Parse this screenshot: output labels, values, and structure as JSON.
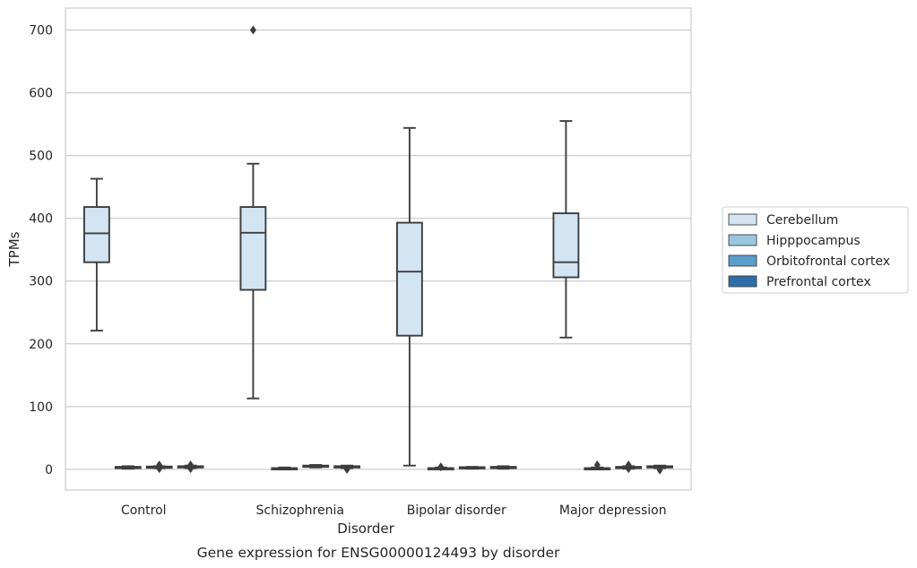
{
  "chart_data": {
    "type": "box",
    "title": "Gene expression for ENSG00000124493 by disorder",
    "xlabel": "Disorder",
    "ylabel": "TPMs",
    "ylim": [
      -33,
      735
    ],
    "yticks": [
      0,
      100,
      200,
      300,
      400,
      500,
      600,
      700
    ],
    "grid": "horizontal",
    "legend_position": "right",
    "categories": [
      "Control",
      "Schizophrenia",
      "Bipolar disorder",
      "Major depression"
    ],
    "series": [
      {
        "name": "Cerebellum",
        "color": "#d3e4f3",
        "boxes": [
          {
            "whislo": 221,
            "q1": 330,
            "med": 376,
            "q3": 418,
            "whishi": 463,
            "fliers": []
          },
          {
            "whislo": 113,
            "q1": 286,
            "med": 377,
            "q3": 418,
            "whishi": 487,
            "fliers": [
              700
            ]
          },
          {
            "whislo": 6,
            "q1": 213,
            "med": 315,
            "q3": 393,
            "whishi": 544,
            "fliers": []
          },
          {
            "whislo": 210,
            "q1": 306,
            "med": 330,
            "q3": 408,
            "whishi": 555,
            "fliers": []
          }
        ]
      },
      {
        "name": "Hipppocampus",
        "color": "#9ac7e0",
        "boxes": [
          {
            "whislo": 1,
            "q1": 2.5,
            "med": 3,
            "q3": 4,
            "whishi": 5,
            "fliers": []
          },
          {
            "whislo": 0,
            "q1": 1,
            "med": 1.5,
            "q3": 2,
            "whishi": 3,
            "fliers": []
          },
          {
            "whislo": 0,
            "q1": 0.5,
            "med": 1,
            "q3": 2,
            "whishi": 3,
            "fliers": [
              4
            ]
          },
          {
            "whislo": 0,
            "q1": 0.5,
            "med": 1,
            "q3": 2,
            "whishi": 3,
            "fliers": [
              7
            ]
          }
        ]
      },
      {
        "name": "Orbitofrontal cortex",
        "color": "#5b9dcb",
        "boxes": [
          {
            "whislo": 2,
            "q1": 3,
            "med": 4,
            "q3": 4.5,
            "whishi": 5,
            "fliers": [
              1,
              7
            ]
          },
          {
            "whislo": 3,
            "q1": 4,
            "med": 5,
            "q3": 6,
            "whishi": 7,
            "fliers": []
          },
          {
            "whislo": 1,
            "q1": 2,
            "med": 3,
            "q3": 3.5,
            "whishi": 4,
            "fliers": []
          },
          {
            "whislo": 1,
            "q1": 2,
            "med": 3,
            "q3": 4,
            "whishi": 5,
            "fliers": [
              1,
              7
            ]
          }
        ]
      },
      {
        "name": "Prefrontal cortex",
        "color": "#2e6ea7",
        "boxes": [
          {
            "whislo": 2,
            "q1": 3,
            "med": 4,
            "q3": 5,
            "whishi": 6,
            "fliers": [
              1,
              7
            ]
          },
          {
            "whislo": 2,
            "q1": 3,
            "med": 4,
            "q3": 5,
            "whishi": 6,
            "fliers": [
              0
            ]
          },
          {
            "whislo": 1,
            "q1": 2,
            "med": 3,
            "q3": 4,
            "whishi": 5,
            "fliers": []
          },
          {
            "whislo": 2,
            "q1": 3,
            "med": 4,
            "q3": 5,
            "whishi": 6,
            "fliers": [
              -1
            ]
          }
        ]
      }
    ]
  }
}
